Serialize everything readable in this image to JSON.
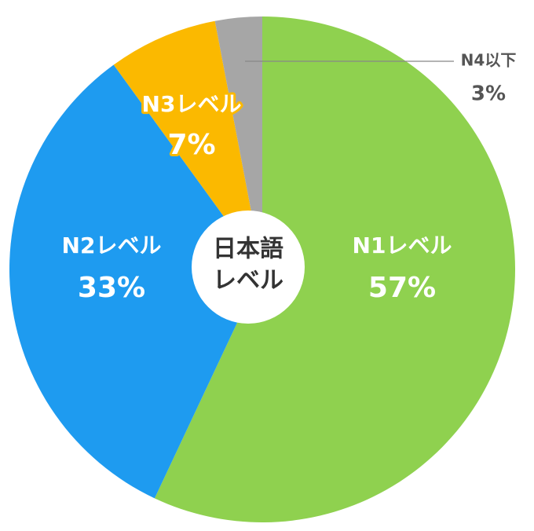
{
  "chart_data": {
    "type": "pie",
    "categories": [
      "N1レベル",
      "N2レベル",
      "N3レベル",
      "N4以下"
    ],
    "values": [
      57,
      33,
      7,
      3
    ],
    "value_labels": [
      "57%",
      "33%",
      "7%",
      "3%"
    ],
    "colors": [
      "#8fd14f",
      "#1e9bf0",
      "#fbb900",
      "#a6a6a6"
    ],
    "center_label": [
      "日本語",
      "レベル"
    ]
  }
}
